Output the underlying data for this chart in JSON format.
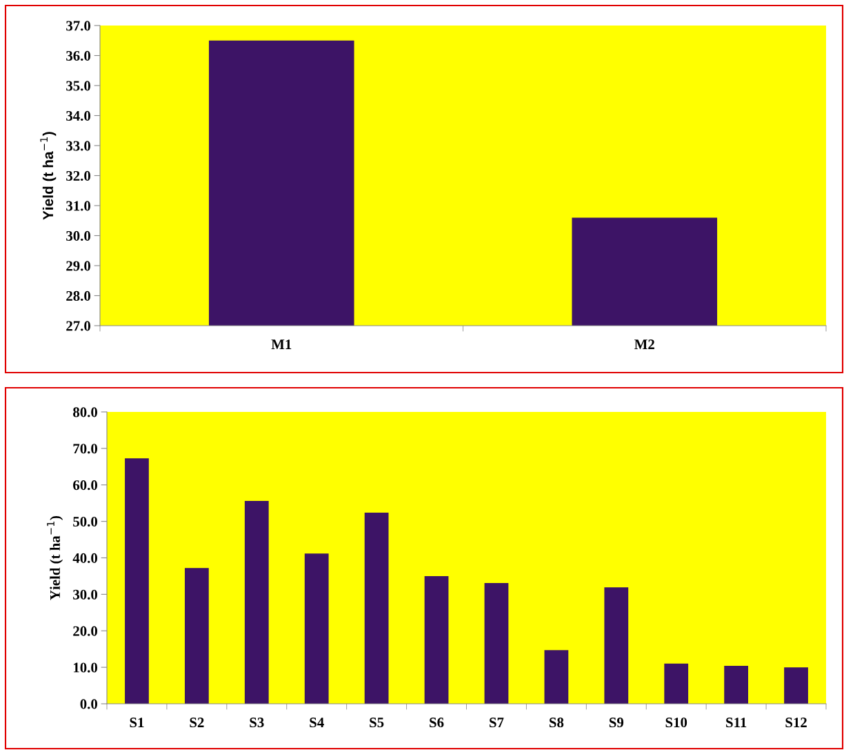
{
  "chart_data": [
    {
      "type": "bar",
      "ylabel": "Yield (t ha$^{−1}$)",
      "categories": [
        "M1",
        "M2"
      ],
      "values": [
        36.5,
        30.6
      ],
      "color": "#3d1466",
      "ylim": [
        27,
        37
      ],
      "yticks": [
        {
          "value": 27,
          "label": "27.0"
        },
        {
          "value": 28,
          "label": "28.0"
        },
        {
          "value": 29,
          "label": "29.0"
        },
        {
          "value": 30,
          "label": "30.0"
        },
        {
          "value": 31,
          "label": "31.0"
        },
        {
          "value": 32,
          "label": "32.0"
        },
        {
          "value": 33,
          "label": "33.0"
        },
        {
          "value": 34,
          "label": "34.0"
        },
        {
          "value": 35,
          "label": "35.0"
        },
        {
          "value": 36,
          "label": "36.0"
        },
        {
          "value": 37,
          "label": "37.0"
        }
      ],
      "grid": false,
      "legend": false
    },
    {
      "type": "bar",
      "ylabel": "Yield (t ha$^{−1}$)",
      "categories": [
        "S1",
        "S2",
        "S3",
        "S4",
        "S5",
        "S6",
        "S7",
        "S8",
        "S9",
        "S10",
        "S11",
        "S12"
      ],
      "values": [
        67.3,
        37.2,
        55.6,
        41.2,
        52.4,
        35.0,
        33.1,
        14.7,
        31.9,
        11.0,
        10.4,
        10.0
      ],
      "color": "#3d1466",
      "ylim": [
        0,
        80
      ],
      "yticks": [
        {
          "value": 0,
          "label": "0.0"
        },
        {
          "value": 10,
          "label": "10.0"
        },
        {
          "value": 20,
          "label": "20.0"
        },
        {
          "value": 30,
          "label": "30.0"
        },
        {
          "value": 40,
          "label": "40.0"
        },
        {
          "value": 50,
          "label": "50.0"
        },
        {
          "value": 60,
          "label": "60.0"
        },
        {
          "value": 70,
          "label": "70.0"
        },
        {
          "value": 80,
          "label": "80.0"
        }
      ],
      "grid": false,
      "legend": false
    }
  ]
}
